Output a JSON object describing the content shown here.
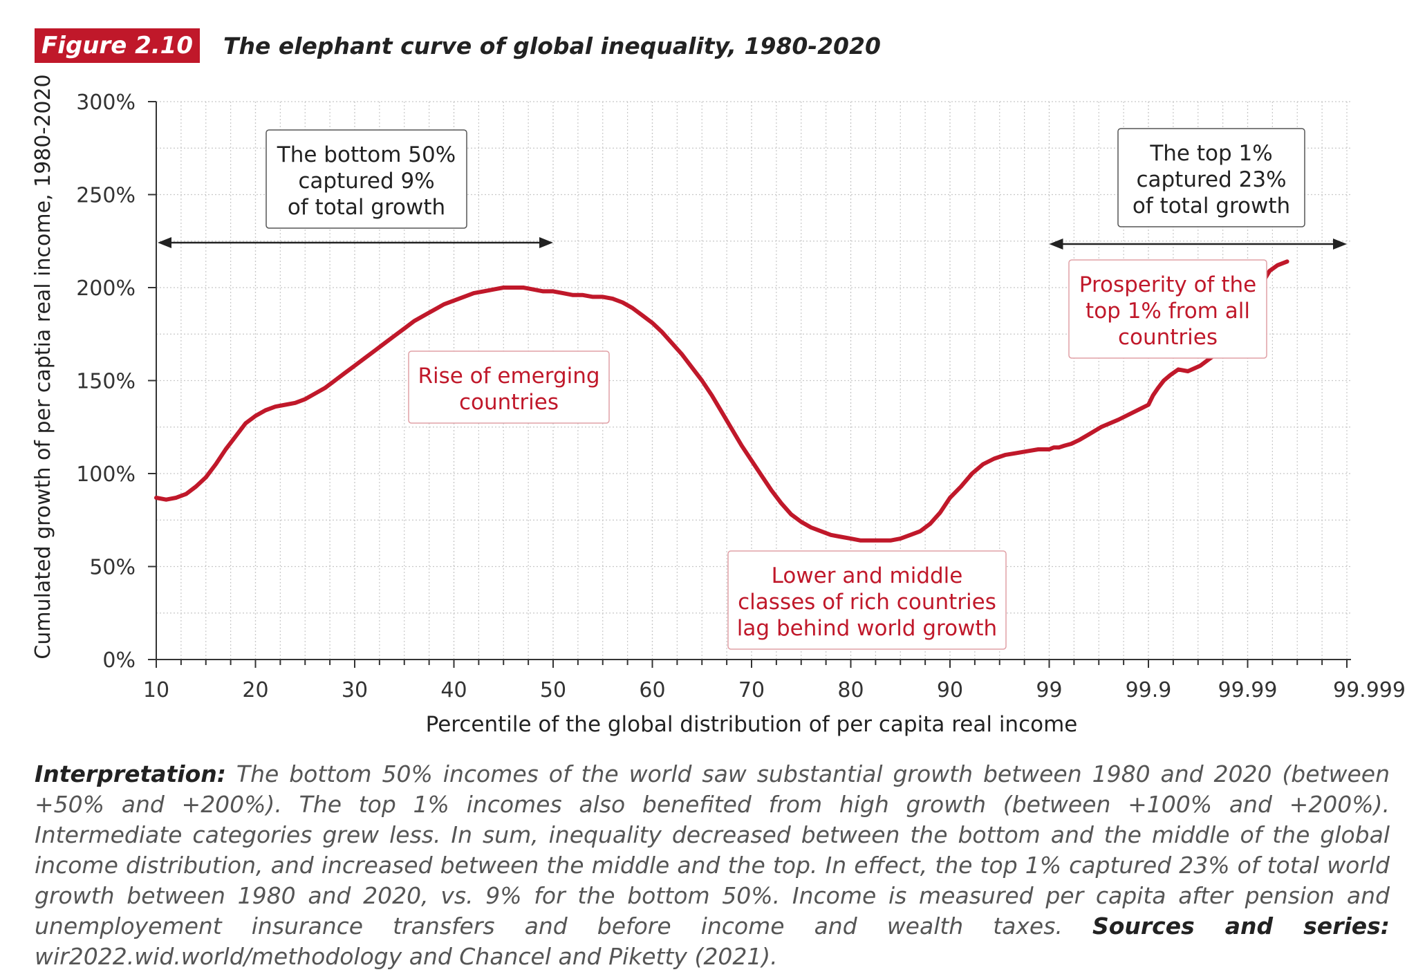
{
  "header": {
    "badge": "Figure 2.10",
    "title": "The elephant curve of global inequality, 1980-2020"
  },
  "colors": {
    "accent": "#c0182a",
    "text": "#222222",
    "grid": "#c8c8c8"
  },
  "chart_data": {
    "type": "line",
    "xlabel": "Percentile of the global distribution of per capita real income",
    "ylabel": "Cumulated growth of per captia real income, 1980-2020",
    "x_ticks": [
      "10",
      "20",
      "30",
      "40",
      "50",
      "60",
      "70",
      "80",
      "90",
      "99",
      "99.9",
      "99.99",
      "99.999"
    ],
    "y_ticks": [
      "0%",
      "50%",
      "100%",
      "150%",
      "200%",
      "250%",
      "300%"
    ],
    "ylim": [
      0,
      300
    ],
    "y_unit": "%",
    "grid": true,
    "series": [
      {
        "color": "#c0182a",
        "points": [
          [
            10,
            87
          ],
          [
            11,
            86
          ],
          [
            12,
            87
          ],
          [
            13,
            89
          ],
          [
            14,
            93
          ],
          [
            15,
            98
          ],
          [
            16,
            105
          ],
          [
            17,
            113
          ],
          [
            18,
            120
          ],
          [
            19,
            127
          ],
          [
            20,
            131
          ],
          [
            21,
            134
          ],
          [
            22,
            136
          ],
          [
            23,
            137
          ],
          [
            24,
            138
          ],
          [
            25,
            140
          ],
          [
            26,
            143
          ],
          [
            27,
            146
          ],
          [
            28,
            150
          ],
          [
            29,
            154
          ],
          [
            30,
            158
          ],
          [
            31,
            162
          ],
          [
            32,
            166
          ],
          [
            33,
            170
          ],
          [
            34,
            174
          ],
          [
            35,
            178
          ],
          [
            36,
            182
          ],
          [
            37,
            185
          ],
          [
            38,
            188
          ],
          [
            39,
            191
          ],
          [
            40,
            193
          ],
          [
            41,
            195
          ],
          [
            42,
            197
          ],
          [
            43,
            198
          ],
          [
            44,
            199
          ],
          [
            45,
            200
          ],
          [
            46,
            200
          ],
          [
            47,
            200
          ],
          [
            48,
            199
          ],
          [
            49,
            198
          ],
          [
            50,
            198
          ],
          [
            51,
            197
          ],
          [
            52,
            196
          ],
          [
            53,
            196
          ],
          [
            54,
            195
          ],
          [
            55,
            195
          ],
          [
            56,
            194
          ],
          [
            57,
            192
          ],
          [
            58,
            189
          ],
          [
            59,
            185
          ],
          [
            60,
            181
          ],
          [
            61,
            176
          ],
          [
            62,
            170
          ],
          [
            63,
            164
          ],
          [
            64,
            157
          ],
          [
            65,
            150
          ],
          [
            66,
            142
          ],
          [
            67,
            133
          ],
          [
            68,
            124
          ],
          [
            69,
            115
          ],
          [
            70,
            107
          ],
          [
            71,
            99
          ],
          [
            72,
            91
          ],
          [
            73,
            84
          ],
          [
            74,
            78
          ],
          [
            75,
            74
          ],
          [
            76,
            71
          ],
          [
            77,
            69
          ],
          [
            78,
            67
          ],
          [
            79,
            66
          ],
          [
            80,
            65
          ],
          [
            81,
            64
          ],
          [
            82,
            64
          ],
          [
            83,
            64
          ],
          [
            84,
            64
          ],
          [
            85,
            65
          ],
          [
            86,
            67
          ],
          [
            87,
            69
          ],
          [
            88,
            73
          ],
          [
            89,
            79
          ],
          [
            90,
            87
          ],
          [
            91,
            93
          ],
          [
            92,
            100
          ],
          [
            93,
            105
          ],
          [
            94,
            108
          ],
          [
            95,
            110
          ],
          [
            96,
            111
          ],
          [
            97,
            112
          ],
          [
            98,
            113
          ],
          [
            99,
            113
          ],
          [
            99.1,
            114
          ],
          [
            99.2,
            114
          ],
          [
            99.3,
            115
          ],
          [
            99.4,
            116
          ],
          [
            99.5,
            118
          ],
          [
            99.6,
            121
          ],
          [
            99.7,
            125
          ],
          [
            99.8,
            129
          ],
          [
            99.9,
            137
          ],
          [
            99.91,
            142
          ],
          [
            99.92,
            146
          ],
          [
            99.93,
            150
          ],
          [
            99.94,
            153
          ],
          [
            99.95,
            156
          ],
          [
            99.96,
            155
          ],
          [
            99.97,
            158
          ],
          [
            99.98,
            165
          ],
          [
            99.99,
            180
          ],
          [
            99.991,
            189
          ],
          [
            99.992,
            197
          ],
          [
            99.993,
            203
          ],
          [
            99.994,
            209
          ],
          [
            99.995,
            212
          ],
          [
            99.996,
            214
          ]
        ]
      }
    ],
    "annotations": {
      "box_bottom": [
        "The bottom 50%",
        "captured 9%",
        "of total growth"
      ],
      "box_top": [
        "The top 1%",
        "captured 23%",
        "of total growth"
      ],
      "label_emerging": [
        "Rise of emerging",
        "countries"
      ],
      "label_rich": [
        "Lower and middle",
        "classes of rich countries",
        "lag behind world growth"
      ],
      "label_top": [
        "Prosperity of the",
        "top 1% from all",
        "countries"
      ]
    }
  },
  "note": {
    "label": "Interpretation:",
    "text": "The bottom 50% incomes of the world saw substantial growth between 1980 and 2020 (between +50% and +200%). The top 1% incomes also benefited from high growth (between +100% and +200%). Intermediate categories grew less. In sum, inequality decreased between the bottom and the middle of the global income distribution, and increased between the middle and the top. In effect, the top 1% captured 23% of total world growth between 1980 and 2020, vs. 9% for the bottom 50%. Income is measured per capita after pension and unemployement insurance transfers and before income and wealth taxes.",
    "sources_label": "Sources and series:",
    "sources_text": "wir2022.wid.world/methodology and Chancel and Piketty (2021)."
  }
}
